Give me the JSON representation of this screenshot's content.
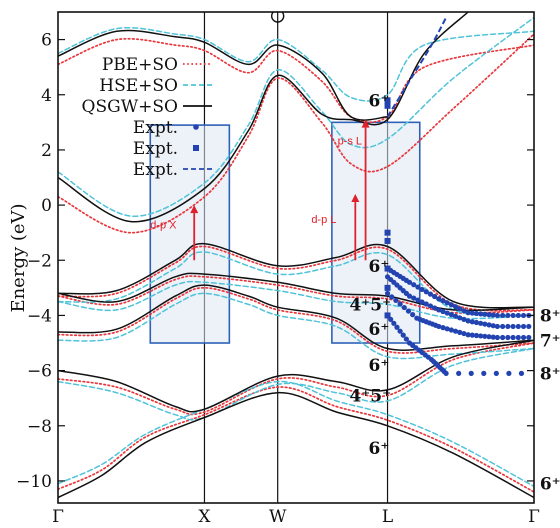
{
  "chart_data": {
    "type": "line",
    "title": "",
    "xlabel": "",
    "ylabel": "Energy (eV)",
    "ylim": [
      -10.8,
      7.0
    ],
    "yticks": [
      -10,
      -8,
      -6,
      -4,
      -2,
      0,
      2,
      4,
      6
    ],
    "ytick_labels": [
      "−10",
      "−8",
      "−6",
      "−4",
      "−2",
      "0",
      "2",
      "4",
      "6"
    ],
    "x_points": [
      "Γ",
      "X",
      "W",
      "L",
      "Γ"
    ],
    "x_point_positions": [
      0,
      1,
      1.5,
      2.25,
      3.25
    ],
    "xlim": [
      0,
      3.25
    ],
    "legend_position": "top-left",
    "series": [
      {
        "name": "PBE+SO",
        "style": "dotted",
        "color": "#e8383d",
        "bands": [
          [
            [
              0,
              -10.3
            ],
            [
              0.3,
              -9.6
            ],
            [
              0.6,
              -8.4
            ],
            [
              1,
              -7.6
            ],
            [
              1.5,
              -6.6
            ],
            [
              1.9,
              -7.3
            ],
            [
              2.25,
              -7.8
            ],
            [
              2.7,
              -8.8
            ],
            [
              3.25,
              -10.4
            ]
          ],
          [
            [
              0,
              -6.3
            ],
            [
              0.4,
              -6.6
            ],
            [
              0.8,
              -7.4
            ],
            [
              1,
              -7.5
            ],
            [
              1.5,
              -6.3
            ],
            [
              1.9,
              -6.6
            ],
            [
              2.25,
              -6.9
            ],
            [
              2.7,
              -5.6
            ],
            [
              3.25,
              -5.0
            ]
          ],
          [
            [
              0,
              -4.7
            ],
            [
              0.4,
              -4.6
            ],
            [
              0.8,
              -3.4
            ],
            [
              1,
              -3.0
            ],
            [
              1.3,
              -3.4
            ],
            [
              1.5,
              -3.8
            ],
            [
              1.9,
              -4.2
            ],
            [
              2.25,
              -5.3
            ],
            [
              2.7,
              -5.2
            ],
            [
              3.25,
              -5.0
            ]
          ],
          [
            [
              0,
              -3.3
            ],
            [
              0.4,
              -3.6
            ],
            [
              0.8,
              -2.7
            ],
            [
              1,
              -2.6
            ],
            [
              1.5,
              -2.9
            ],
            [
              1.9,
              -3.3
            ],
            [
              2.25,
              -3.4
            ],
            [
              2.7,
              -3.9
            ],
            [
              3.25,
              -3.8
            ]
          ],
          [
            [
              0,
              -3.3
            ],
            [
              0.4,
              -3.2
            ],
            [
              0.8,
              -2.1
            ],
            [
              1,
              -1.5
            ],
            [
              1.5,
              -2.3
            ],
            [
              1.9,
              -2.0
            ],
            [
              2.25,
              -1.6
            ],
            [
              2.7,
              -3.6
            ],
            [
              3.25,
              -3.8
            ]
          ],
          [
            [
              0,
              0.3
            ],
            [
              0.5,
              -1.0
            ],
            [
              1,
              0.3
            ],
            [
              1.3,
              2.5
            ],
            [
              1.5,
              4.6
            ],
            [
              1.8,
              3.0
            ],
            [
              2.0,
              1.5
            ],
            [
              2.25,
              1.4
            ],
            [
              2.7,
              3.5
            ],
            [
              3.25,
              6.2
            ]
          ],
          [
            [
              0,
              5.1
            ],
            [
              0.4,
              6.0
            ],
            [
              0.8,
              5.8
            ],
            [
              1,
              5.6
            ],
            [
              1.3,
              4.8
            ],
            [
              1.5,
              5.6
            ],
            [
              1.8,
              4.5
            ],
            [
              2.0,
              3.2
            ],
            [
              2.25,
              3.2
            ],
            [
              2.5,
              5.0
            ],
            [
              3.25,
              5.8
            ]
          ]
        ]
      },
      {
        "name": "HSE+SO",
        "style": "dashed",
        "color": "#4fc3d9",
        "bands": [
          [
            [
              0,
              -10.1
            ],
            [
              0.3,
              -9.4
            ],
            [
              0.6,
              -8.3
            ],
            [
              1,
              -7.4
            ],
            [
              1.5,
              -6.4
            ],
            [
              1.9,
              -7.1
            ],
            [
              2.25,
              -7.6
            ],
            [
              2.7,
              -8.6
            ],
            [
              3.25,
              -10.2
            ]
          ],
          [
            [
              0,
              -6.4
            ],
            [
              0.4,
              -6.8
            ],
            [
              0.8,
              -7.6
            ],
            [
              1,
              -7.7
            ],
            [
              1.5,
              -6.5
            ],
            [
              1.9,
              -6.8
            ],
            [
              2.25,
              -7.1
            ],
            [
              2.7,
              -5.8
            ],
            [
              3.25,
              -5.2
            ]
          ],
          [
            [
              0,
              -4.9
            ],
            [
              0.4,
              -4.8
            ],
            [
              0.8,
              -3.6
            ],
            [
              1,
              -3.2
            ],
            [
              1.3,
              -3.6
            ],
            [
              1.5,
              -4.0
            ],
            [
              1.9,
              -4.4
            ],
            [
              2.25,
              -5.5
            ],
            [
              2.7,
              -5.4
            ],
            [
              3.25,
              -5.2
            ]
          ],
          [
            [
              0,
              -3.5
            ],
            [
              0.4,
              -3.8
            ],
            [
              0.8,
              -2.9
            ],
            [
              1,
              -2.8
            ],
            [
              1.5,
              -3.1
            ],
            [
              1.9,
              -3.5
            ],
            [
              2.25,
              -3.6
            ],
            [
              2.7,
              -4.1
            ],
            [
              3.25,
              -4.0
            ]
          ],
          [
            [
              0,
              -3.5
            ],
            [
              0.4,
              -3.4
            ],
            [
              0.8,
              -2.3
            ],
            [
              1,
              -1.7
            ],
            [
              1.5,
              -2.5
            ],
            [
              1.9,
              -2.2
            ],
            [
              2.25,
              -1.8
            ],
            [
              2.7,
              -3.8
            ],
            [
              3.25,
              -4.0
            ]
          ],
          [
            [
              0,
              1.2
            ],
            [
              0.5,
              -0.4
            ],
            [
              1,
              0.8
            ],
            [
              1.3,
              2.9
            ],
            [
              1.5,
              4.9
            ],
            [
              1.8,
              3.4
            ],
            [
              2.0,
              2.2
            ],
            [
              2.25,
              2.4
            ],
            [
              2.7,
              4.6
            ],
            [
              3.25,
              6.8
            ]
          ],
          [
            [
              0,
              5.5
            ],
            [
              0.4,
              6.4
            ],
            [
              0.8,
              6.2
            ],
            [
              1,
              6.0
            ],
            [
              1.3,
              5.2
            ],
            [
              1.5,
              6.0
            ],
            [
              1.8,
              4.9
            ],
            [
              2.0,
              3.9
            ],
            [
              2.25,
              4.0
            ],
            [
              2.5,
              5.8
            ],
            [
              3.25,
              6.3
            ]
          ]
        ]
      },
      {
        "name": "QSGW+SO",
        "style": "solid",
        "color": "#111111",
        "bands": [
          [
            [
              0,
              -10.6
            ],
            [
              0.3,
              -9.8
            ],
            [
              0.6,
              -8.6
            ],
            [
              1,
              -7.7
            ],
            [
              1.5,
              -6.8
            ],
            [
              1.9,
              -7.5
            ],
            [
              2.25,
              -8.0
            ],
            [
              2.7,
              -9.0
            ],
            [
              3.25,
              -10.6
            ]
          ],
          [
            [
              0,
              -6.0
            ],
            [
              0.4,
              -6.4
            ],
            [
              0.8,
              -7.3
            ],
            [
              1,
              -7.4
            ],
            [
              1.5,
              -6.2
            ],
            [
              1.9,
              -6.4
            ],
            [
              2.25,
              -6.7
            ],
            [
              2.7,
              -5.5
            ],
            [
              3.25,
              -4.9
            ]
          ],
          [
            [
              0,
              -4.6
            ],
            [
              0.4,
              -4.5
            ],
            [
              0.8,
              -3.3
            ],
            [
              1,
              -2.9
            ],
            [
              1.3,
              -3.3
            ],
            [
              1.5,
              -3.7
            ],
            [
              1.9,
              -4.1
            ],
            [
              2.25,
              -5.2
            ],
            [
              2.7,
              -5.1
            ],
            [
              3.25,
              -4.9
            ]
          ],
          [
            [
              0,
              -3.2
            ],
            [
              0.4,
              -3.5
            ],
            [
              0.8,
              -2.6
            ],
            [
              1,
              -2.5
            ],
            [
              1.5,
              -2.8
            ],
            [
              1.9,
              -3.2
            ],
            [
              2.25,
              -3.3
            ],
            [
              2.7,
              -3.8
            ],
            [
              3.25,
              -3.7
            ]
          ],
          [
            [
              0,
              -3.2
            ],
            [
              0.4,
              -3.1
            ],
            [
              0.8,
              -2.0
            ],
            [
              1,
              -1.4
            ],
            [
              1.5,
              -2.2
            ],
            [
              1.9,
              -1.9
            ],
            [
              2.25,
              -1.5
            ],
            [
              2.7,
              -3.5
            ],
            [
              3.25,
              -3.7
            ]
          ],
          [
            [
              0,
              1.0
            ],
            [
              0.5,
              -0.6
            ],
            [
              1,
              0.6
            ],
            [
              1.3,
              2.7
            ],
            [
              1.5,
              4.7
            ],
            [
              1.8,
              3.3
            ],
            [
              2.0,
              3.1
            ],
            [
              2.25,
              3.1
            ],
            [
              2.5,
              5.5
            ],
            [
              2.8,
              7.0
            ]
          ],
          [
            [
              0,
              5.4
            ],
            [
              0.4,
              6.3
            ],
            [
              0.8,
              6.1
            ],
            [
              1,
              5.9
            ],
            [
              1.3,
              5.1
            ],
            [
              1.5,
              5.8
            ],
            [
              1.8,
              4.8
            ],
            [
              2.0,
              3.2
            ],
            [
              2.25,
              3.2
            ]
          ]
        ]
      }
    ],
    "expt_points": {
      "legend": [
        "Expt.",
        "Expt.",
        "Expt."
      ],
      "color": "#2344b0",
      "squares": [
        [
          2.25,
          3.6
        ],
        [
          2.25,
          3.8
        ],
        [
          2.25,
          -1.0
        ],
        [
          2.25,
          -1.3
        ],
        [
          2.25,
          -2.3
        ],
        [
          2.25,
          -3.0
        ],
        [
          2.25,
          -4.0
        ]
      ],
      "branches": [
        [
          [
            2.25,
            -2.3
          ],
          [
            2.4,
            -2.8
          ],
          [
            2.6,
            -3.4
          ],
          [
            2.8,
            -3.9
          ],
          [
            3.0,
            -4.0
          ],
          [
            3.25,
            -4.0
          ]
        ],
        [
          [
            2.25,
            -2.6
          ],
          [
            2.4,
            -3.3
          ],
          [
            2.6,
            -3.8
          ],
          [
            2.8,
            -4.2
          ],
          [
            3.0,
            -4.4
          ],
          [
            3.25,
            -4.4
          ]
        ],
        [
          [
            2.25,
            -3.2
          ],
          [
            2.45,
            -4.1
          ],
          [
            2.6,
            -4.4
          ],
          [
            2.8,
            -4.7
          ],
          [
            3.0,
            -4.8
          ],
          [
            3.25,
            -4.8
          ]
        ],
        [
          [
            2.25,
            -4.0
          ],
          [
            2.4,
            -5.0
          ],
          [
            2.55,
            -5.6
          ],
          [
            2.65,
            -6.1
          ],
          [
            3.25,
            -6.1
          ]
        ]
      ],
      "dashed_conduction": [
        [
          2.25,
          3.2
        ],
        [
          2.4,
          4.5
        ],
        [
          2.55,
          5.8
        ],
        [
          2.65,
          6.8
        ]
      ]
    },
    "boxes": [
      {
        "x": [
          0.63,
          1.17
        ],
        "y": [
          -5.0,
          2.9
        ]
      },
      {
        "x": [
          1.87,
          2.47
        ],
        "y": [
          -5.0,
          3.0
        ]
      }
    ],
    "arrows": [
      {
        "label": "d-p X",
        "x": 0.93,
        "y_from": -2.0,
        "y_to": 0.0
      },
      {
        "label": "d-p L",
        "x": 2.03,
        "y_from": -2.0,
        "y_to": 0.4
      },
      {
        "label": "p-s L",
        "x": 2.1,
        "y_from": -2.0,
        "y_to": 3.1
      }
    ],
    "irrep_labels": [
      {
        "text": "6⁺",
        "x": 2.12,
        "y": 3.8
      },
      {
        "text": "6⁺",
        "x": 2.12,
        "y": -2.2
      },
      {
        "text": "4⁺5⁺",
        "x": 1.99,
        "y": -3.6
      },
      {
        "text": "6⁺",
        "x": 2.12,
        "y": -4.5
      },
      {
        "text": "6⁺",
        "x": 2.12,
        "y": -5.8
      },
      {
        "text": "4⁺5⁺",
        "x": 1.99,
        "y": -6.9
      },
      {
        "text": "6⁺",
        "x": 2.12,
        "y": -8.8
      },
      {
        "text": "8⁺",
        "x": 3.29,
        "y": -4.0
      },
      {
        "text": "7⁺",
        "x": 3.29,
        "y": -4.9
      },
      {
        "text": "8⁺",
        "x": 3.29,
        "y": -6.1
      },
      {
        "text": "6⁺",
        "x": 3.29,
        "y": -10.1
      }
    ]
  }
}
